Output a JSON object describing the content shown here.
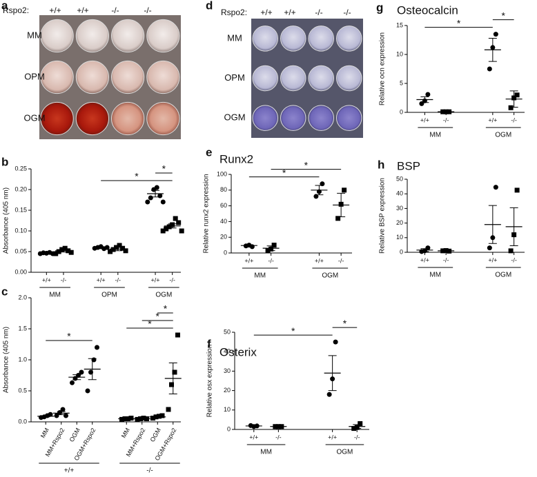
{
  "plates": [
    {
      "panel": "a",
      "header": "Rspo2:",
      "columns": [
        "+/+",
        "+/+",
        "-/-",
        "-/-"
      ],
      "rows": [
        "MM",
        "OPM",
        "OGM"
      ]
    },
    {
      "panel": "d",
      "header": "Rspo2:",
      "columns": [
        "+/+",
        "+/+",
        "-/-",
        "-/-"
      ],
      "rows": [
        "MM",
        "OPM",
        "OGM"
      ]
    }
  ],
  "chart_data": [
    {
      "type": "dotplot",
      "panel": "b",
      "y_label": "Absorbance (405 nm)",
      "categories": [
        "+/+",
        "-/-",
        "+/+",
        "-/-",
        "+/+",
        "-/-"
      ],
      "groups": [
        "MM",
        "OPM",
        "OGM"
      ],
      "markers": [
        "circle",
        "square",
        "circle",
        "square",
        "circle",
        "square"
      ],
      "points": [
        [
          0.045,
          0.047,
          0.046,
          0.048,
          0.045
        ],
        [
          0.045,
          0.05,
          0.055,
          0.058,
          0.052,
          0.048
        ],
        [
          0.058,
          0.06,
          0.062,
          0.057,
          0.06
        ],
        [
          0.05,
          0.055,
          0.06,
          0.065,
          0.058,
          0.052
        ],
        [
          0.17,
          0.18,
          0.2,
          0.205,
          0.185,
          0.17
        ],
        [
          0.1,
          0.105,
          0.11,
          0.115,
          0.13,
          0.12,
          0.1
        ]
      ],
      "means": [
        0.046,
        0.052,
        0.059,
        0.056,
        0.19,
        0.112
      ],
      "sems": [
        0.001,
        0.003,
        0.002,
        0.004,
        0.008,
        0.005
      ],
      "ylim": [
        0,
        0.25
      ],
      "yticks": [
        {
          "value": 0,
          "label": "0.00"
        },
        0.05,
        {
          "value": 0.1,
          "label": "0.10"
        },
        0.15,
        {
          "value": 0.2,
          "label": "0.20"
        },
        0.25
      ],
      "comparisons": [
        {
          "label": "*",
          "between": [
            2,
            5
          ]
        },
        {
          "label": "*",
          "between": [
            4,
            5
          ]
        }
      ]
    },
    {
      "type": "dotplot",
      "panel": "c",
      "y_label": "Absorbance (405 nm)",
      "categories": [
        "MM",
        "MM+Rspo2",
        "OGM",
        "OGM+Rspo2",
        "MM",
        "MM+Rspo2",
        "OGM",
        "OGM+Rspo2"
      ],
      "groups": [
        "+/+",
        "-/-"
      ],
      "markers": [
        "circle",
        "circle",
        "circle",
        "circle",
        "square",
        "square",
        "square",
        "square"
      ],
      "points": [
        [
          0.07,
          0.08,
          0.1,
          0.12
        ],
        [
          0.1,
          0.15,
          0.2,
          0.1
        ],
        [
          0.63,
          0.7,
          0.75,
          0.8
        ],
        [
          0.5,
          0.8,
          1.0,
          1.2
        ],
        [
          0.04,
          0.05,
          0.05,
          0.06
        ],
        [
          0.04,
          0.05,
          0.06,
          0.05
        ],
        [
          0.06,
          0.08,
          0.09,
          0.1
        ],
        [
          0.2,
          0.6,
          0.8,
          1.4
        ]
      ],
      "means": [
        0.09,
        0.14,
        0.72,
        0.85,
        0.05,
        0.05,
        0.08,
        0.7
      ],
      "sems": [
        0.01,
        0.025,
        0.04,
        0.17,
        0.005,
        0.005,
        0.01,
        0.25
      ],
      "ylim": [
        0,
        2
      ],
      "yticks": [
        {
          "value": 0,
          "label": "0.0"
        },
        0.5,
        {
          "value": 1,
          "label": "1.0"
        },
        1.5,
        {
          "value": 2,
          "label": "2.0"
        }
      ],
      "comparisons": [
        {
          "label": "*",
          "between": [
            0,
            3
          ]
        },
        {
          "label": "*",
          "between": [
            4,
            7
          ]
        },
        {
          "label": "*",
          "between": [
            5,
            7
          ]
        },
        {
          "label": "*",
          "between": [
            6,
            7
          ]
        }
      ]
    },
    {
      "type": "dotplot",
      "panel": "e",
      "title": "Runx2",
      "y_label": "Relative runx2 expression",
      "categories": [
        "+/+",
        "-/-",
        "+/+",
        "-/-"
      ],
      "groups": [
        "MM",
        "OGM"
      ],
      "markers": [
        "circle",
        "square",
        "circle",
        "square"
      ],
      "points": [
        [
          9,
          10,
          8
        ],
        [
          3,
          5,
          10
        ],
        [
          72,
          78,
          88
        ],
        [
          44,
          62,
          80
        ]
      ],
      "means": [
        9.5,
        6,
        80,
        61
      ],
      "sems": [
        1,
        3,
        6,
        15
      ],
      "ylim": [
        0,
        100
      ],
      "yticks": [
        0,
        20,
        40,
        60,
        80,
        100
      ],
      "comparisons": [
        {
          "label": "*",
          "between": [
            0,
            2
          ]
        },
        {
          "label": "*",
          "between": [
            1,
            3
          ]
        }
      ]
    },
    {
      "type": "dotplot",
      "panel": "f",
      "title": "Osterix",
      "y_label": "Relative osx expression",
      "categories": [
        "+/+",
        "-/-",
        "+/+",
        "-/-"
      ],
      "groups": [
        "MM",
        "OGM"
      ],
      "markers": [
        "circle",
        "square",
        "circle",
        "square"
      ],
      "points": [
        [
          2,
          1.5,
          1.8
        ],
        [
          1.5,
          1.5,
          1.5
        ],
        [
          18,
          26,
          45
        ],
        [
          0.5,
          1,
          3
        ]
      ],
      "means": [
        1.8,
        1.5,
        29,
        1.5
      ],
      "sems": [
        0.2,
        0.1,
        9,
        1
      ],
      "ylim": [
        0,
        50
      ],
      "yticks": [
        0,
        10,
        20,
        30,
        40,
        50
      ],
      "comparisons": [
        {
          "label": "*",
          "between": [
            0,
            2
          ]
        },
        {
          "label": "*",
          "between": [
            2,
            3
          ]
        }
      ]
    },
    {
      "type": "dotplot",
      "panel": "g",
      "title": "Osteocalcin",
      "y_label": "Relative ocn expression",
      "categories": [
        "+/+",
        "-/-",
        "+/+",
        "-/-"
      ],
      "groups": [
        "MM",
        "OGM"
      ],
      "markers": [
        "circle",
        "square",
        "circle",
        "square"
      ],
      "points": [
        [
          1.5,
          2,
          3.1
        ],
        [
          0.1,
          0.1,
          0.1
        ],
        [
          7.5,
          11.2,
          13.5
        ],
        [
          0.8,
          2.5,
          3
        ]
      ],
      "means": [
        2.2,
        0.1,
        10.8,
        2.3
      ],
      "sems": [
        0.5,
        0.05,
        2,
        1.4
      ],
      "ylim": [
        0,
        15
      ],
      "yticks": [
        0,
        5,
        10,
        15
      ],
      "comparisons": [
        {
          "label": "*",
          "between": [
            0,
            2
          ]
        },
        {
          "label": "*",
          "between": [
            2,
            3
          ]
        }
      ]
    },
    {
      "type": "dotplot",
      "panel": "h",
      "title": "BSP",
      "y_label": "Relative BSP expression",
      "categories": [
        "+/+",
        "-/-",
        "+/+",
        "-/-"
      ],
      "groups": [
        "MM",
        "OGM"
      ],
      "markers": [
        "circle",
        "square",
        "circle",
        "square"
      ],
      "points": [
        [
          0.5,
          1,
          3
        ],
        [
          1,
          1.2,
          0.8
        ],
        [
          3,
          10,
          44.5
        ],
        [
          1,
          12,
          42.5
        ]
      ],
      "means": [
        1.5,
        1,
        19,
        17.5
      ],
      "sems": [
        1,
        0.2,
        13,
        13
      ],
      "ylim": [
        0,
        50
      ],
      "yticks": [
        0,
        10,
        20,
        30,
        40,
        50
      ],
      "comparisons": []
    }
  ]
}
